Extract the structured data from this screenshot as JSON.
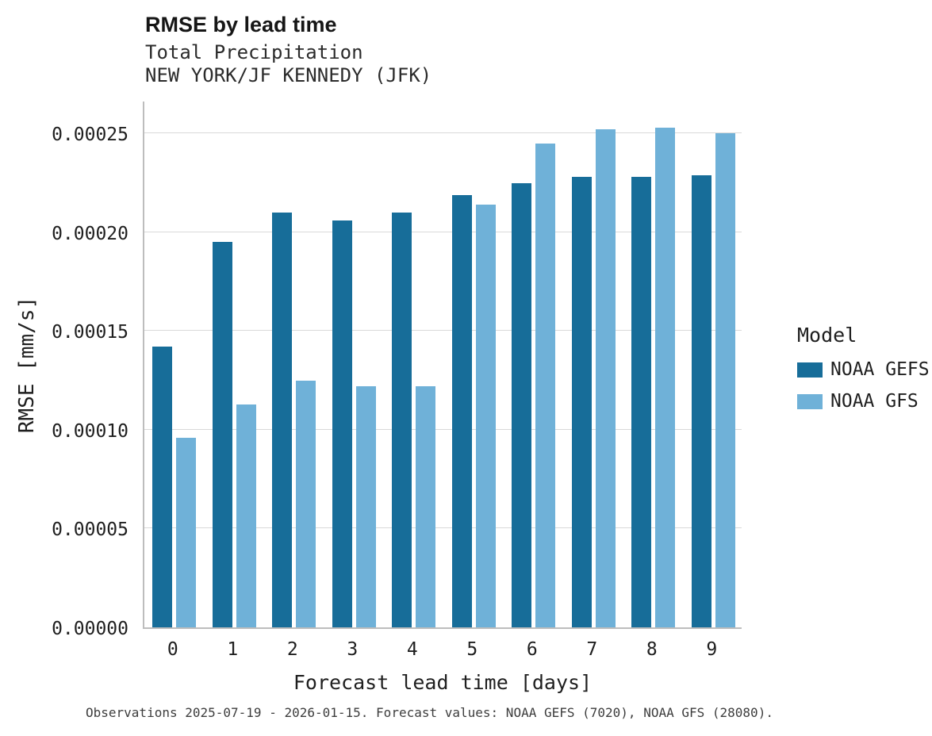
{
  "title": "RMSE by lead time",
  "subtitle_line1": "Total Precipitation",
  "subtitle_line2": "NEW YORK/JF KENNEDY (JFK)",
  "caption": "Observations 2025-07-19 - 2026-01-15. Forecast values: NOAA GEFS (7020), NOAA GFS (28080).",
  "legend": {
    "title": "Model",
    "position": "right"
  },
  "colors": {
    "gefs_dark_blue": "#176d99",
    "gfs_light_blue": "#6fb1d8",
    "gridline_gray": "#d9d9d9",
    "spine_gray": "#bdbdbd"
  },
  "chart_data": {
    "type": "bar",
    "title": "RMSE by lead time",
    "subtitle": [
      "Total Precipitation",
      "NEW YORK/JF KENNEDY (JFK)"
    ],
    "xlabel": "Forecast lead time [days]",
    "ylabel": "RMSE [mm/s]",
    "categories": [
      "0",
      "1",
      "2",
      "3",
      "4",
      "5",
      "6",
      "7",
      "8",
      "9"
    ],
    "series": [
      {
        "name": "NOAA GEFS",
        "color": "#176d99",
        "values": [
          0.000142,
          0.000195,
          0.00021,
          0.000206,
          0.00021,
          0.000219,
          0.000225,
          0.000228,
          0.000228,
          0.000229
        ]
      },
      {
        "name": "NOAA GFS",
        "color": "#6fb1d8",
        "values": [
          9.6e-05,
          0.000113,
          0.000125,
          0.000122,
          0.000122,
          0.000214,
          0.000245,
          0.000252,
          0.000253,
          0.00025
        ]
      }
    ],
    "yticks": [
      0.0,
      5e-05,
      0.0001,
      0.00015,
      0.0002,
      0.00025
    ],
    "ytick_labels": [
      "0.00000",
      "0.00005",
      "0.00010",
      "0.00015",
      "0.00020",
      "0.00025"
    ],
    "ylim": [
      0,
      0.000267
    ],
    "grid": "horizontal",
    "legend_position": "right"
  }
}
